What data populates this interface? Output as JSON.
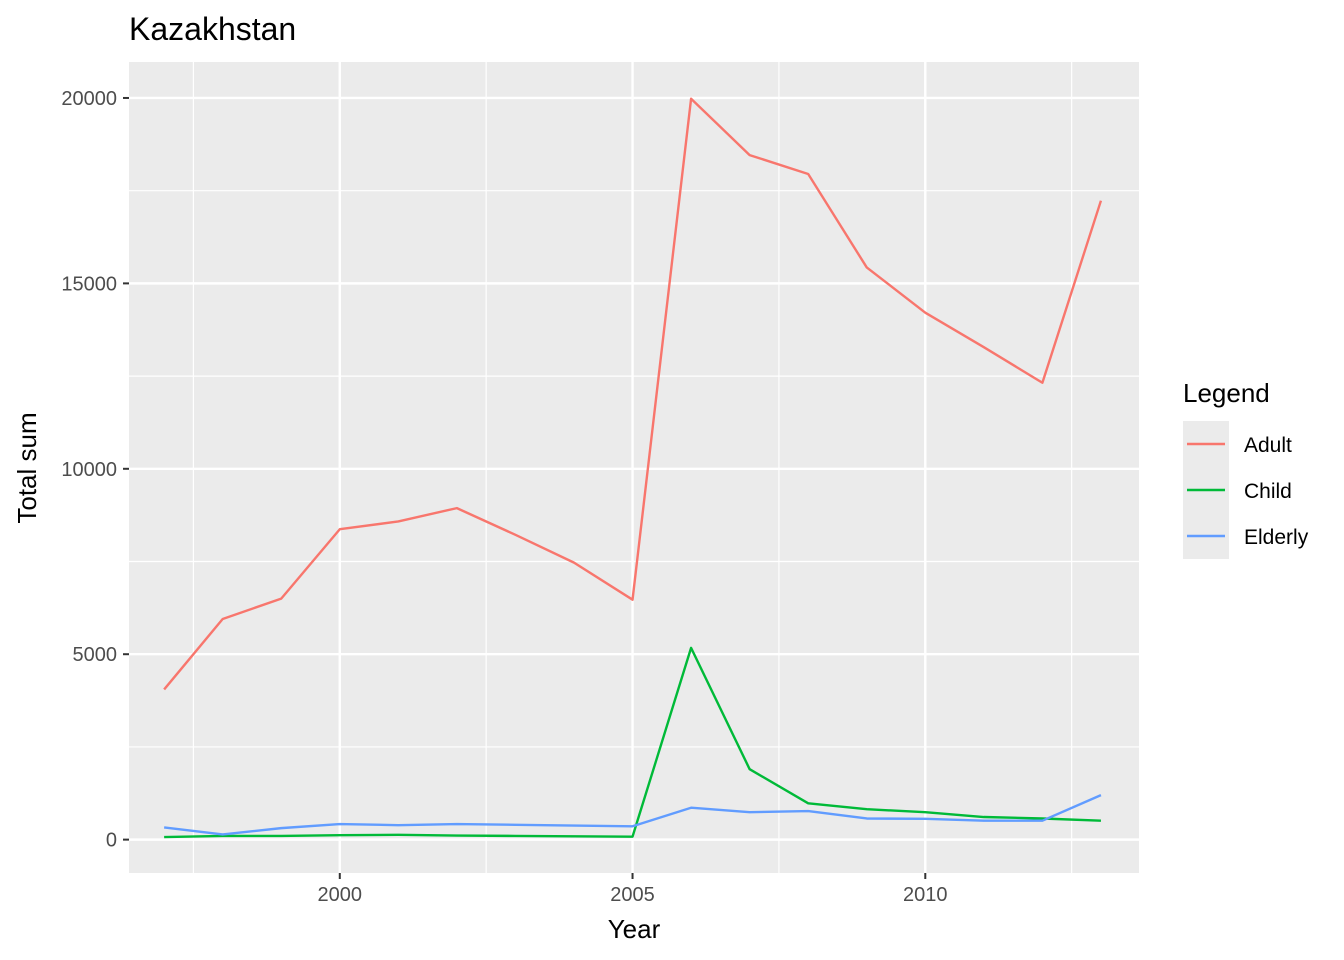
{
  "chart_data": {
    "type": "line",
    "title": "Kazakhstan",
    "xlabel": "Year",
    "ylabel": "Total sum",
    "xlim": [
      1996.4,
      2013.65
    ],
    "ylim": [
      -900,
      20970
    ],
    "x_ticks": [
      2000,
      2005,
      2010
    ],
    "y_ticks": [
      0,
      5000,
      10000,
      15000,
      20000
    ],
    "x_minor": [
      1997.5,
      2002.5,
      2007.5,
      2012.5
    ],
    "y_minor": [
      2500,
      7500,
      12500,
      17500
    ],
    "grid": true,
    "legend": {
      "title": "Legend",
      "position": "right"
    },
    "x": [
      1997,
      1998,
      1999,
      2000,
      2001,
      2002,
      2003,
      2004,
      2005,
      2006,
      2007,
      2008,
      2009,
      2010,
      2011,
      2012,
      2013
    ],
    "series": [
      {
        "name": "Adult",
        "color": "#F8766D",
        "values": [
          4050,
          5950,
          6500,
          8370,
          8580,
          8940,
          8220,
          7470,
          6470,
          19980,
          18460,
          17950,
          15430,
          14210,
          13280,
          12320,
          17230
        ]
      },
      {
        "name": "Child",
        "color": "#00BA38",
        "values": [
          70,
          100,
          100,
          120,
          130,
          110,
          100,
          90,
          80,
          5170,
          1900,
          980,
          820,
          740,
          610,
          570,
          510
        ]
      },
      {
        "name": "Elderly",
        "color": "#619CFF",
        "values": [
          330,
          140,
          310,
          420,
          390,
          420,
          400,
          380,
          360,
          860,
          740,
          770,
          570,
          560,
          510,
          510,
          1200
        ]
      }
    ]
  }
}
